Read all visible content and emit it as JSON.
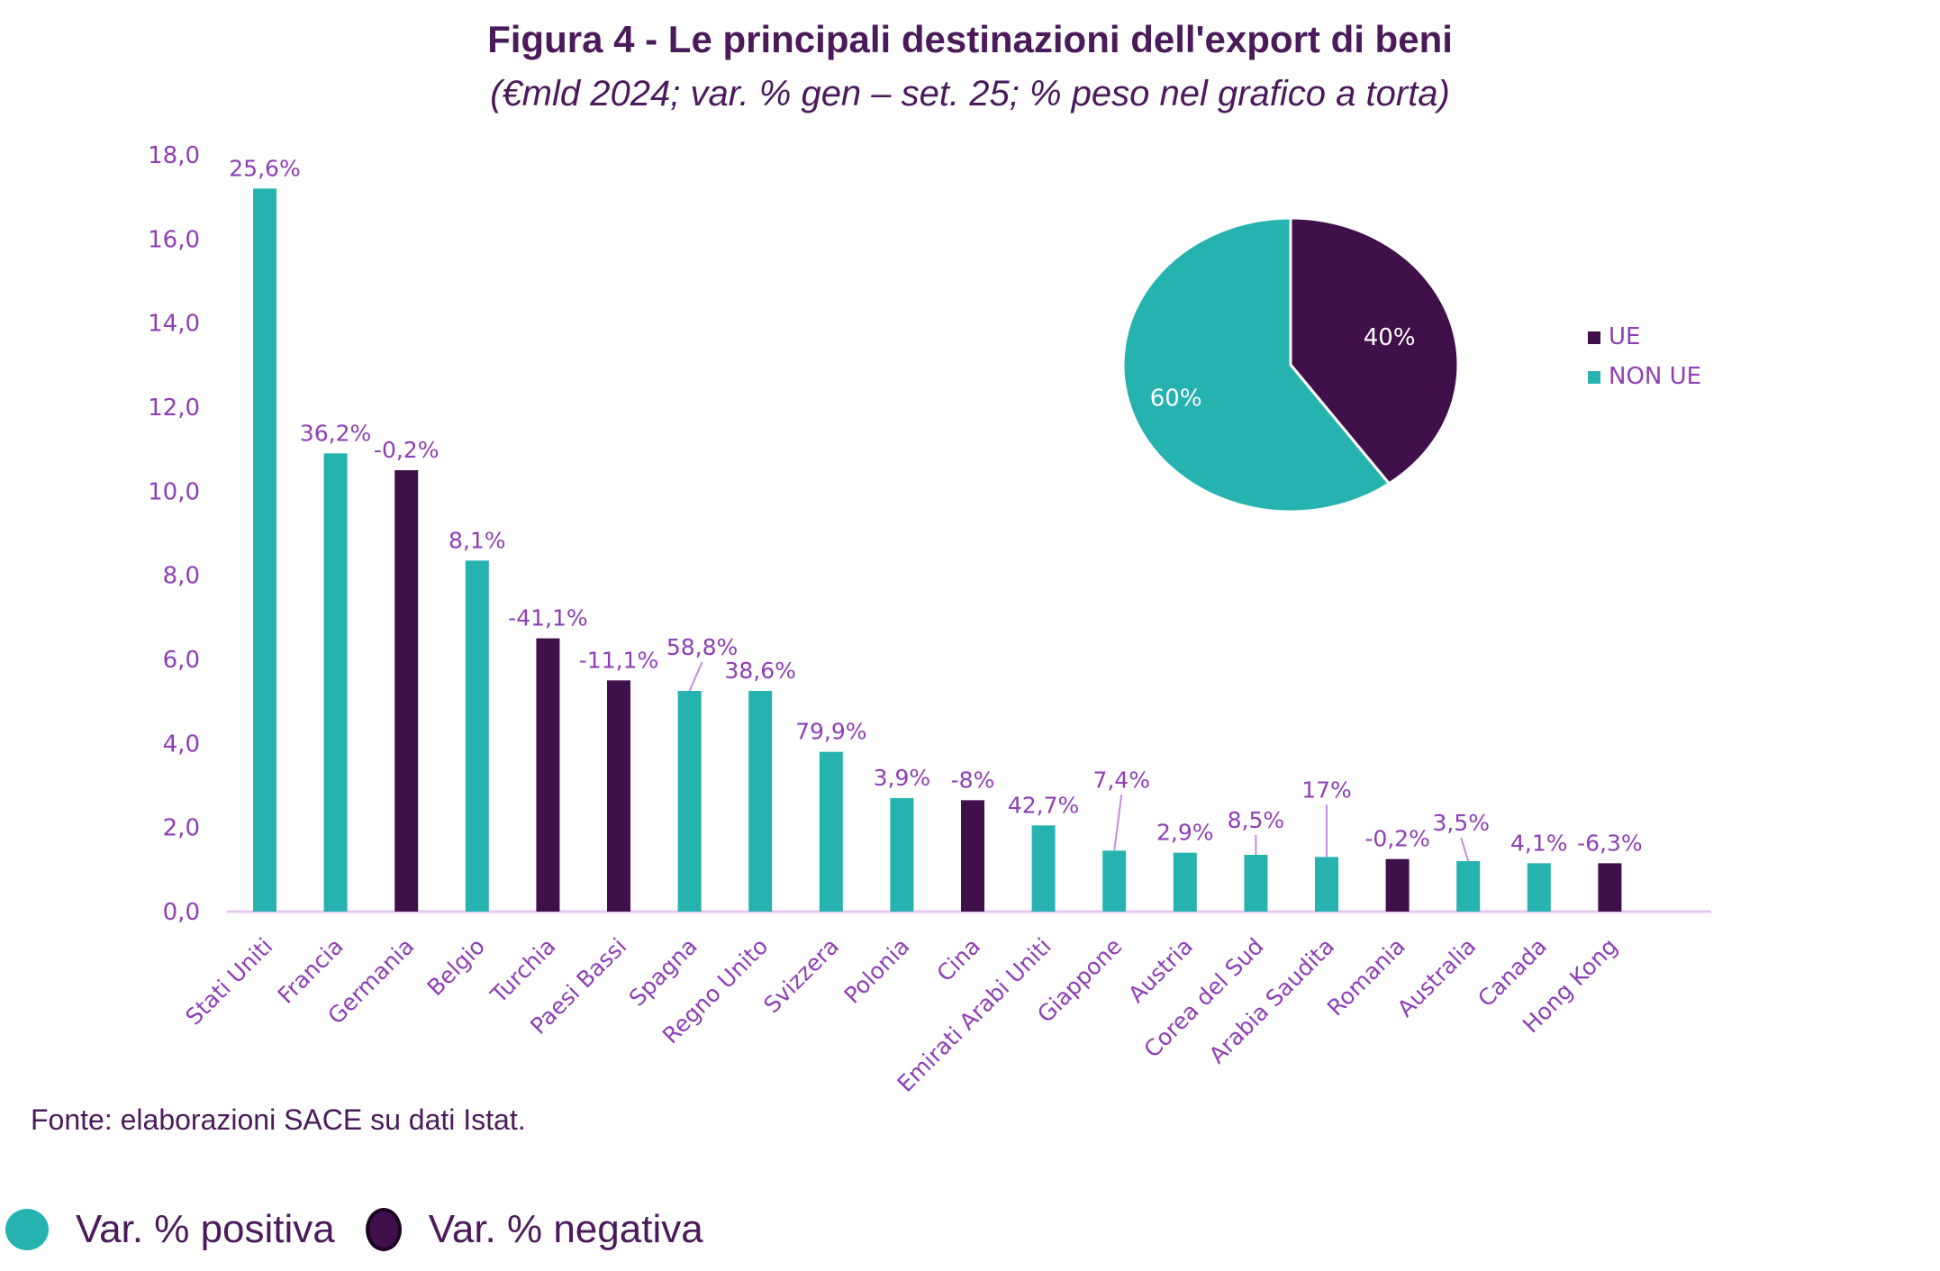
{
  "title": "Figura 4 - Le principali destinazioni dell'export di beni",
  "subtitle": "(€mld 2024; var. % gen – set. 25; % peso nel grafico a torta)",
  "source": "Fonte: elaborazioni SACE su dati Istat.",
  "legend_bottom": {
    "positive": "Var. % positiva",
    "negative": "Var. % negativa"
  },
  "colors": {
    "positive": "#26B3B0",
    "negative": "#3F1049",
    "label": "#8E3FB5",
    "axis": "#E5C8F0",
    "title": "#4A1A5A"
  },
  "chart_data": [
    {
      "type": "bar",
      "title": "Le principali destinazioni dell'export di beni",
      "xlabel": "",
      "ylabel": "€mld 2024",
      "ylim": [
        0,
        18
      ],
      "yticks": [
        "0,0",
        "2,0",
        "4,0",
        "6,0",
        "8,0",
        "10,0",
        "12,0",
        "14,0",
        "16,0",
        "18,0"
      ],
      "grid": false,
      "categories": [
        "Stati Uniti",
        "Francia",
        "Germania",
        "Belgio",
        "Turchia",
        "Paesi Bassi",
        "Spagna",
        "Regno Unito",
        "Svizzera",
        "Polonia",
        "Cina",
        "Emirati Arabi Uniti",
        "Giappone",
        "Austria",
        "Corea del Sud",
        "Arabia Saudita",
        "Romania",
        "Australia",
        "Canada",
        "Hong Kong"
      ],
      "values": [
        17.2,
        10.9,
        10.5,
        8.35,
        6.5,
        5.5,
        5.25,
        5.25,
        3.8,
        2.7,
        2.65,
        2.05,
        1.45,
        1.4,
        1.35,
        1.3,
        1.25,
        1.2,
        1.15,
        1.15
      ],
      "data_labels": [
        "25,6%",
        "36,2%",
        "-0,2%",
        "8,1%",
        "-41,1%",
        "-11,1%",
        "58,8%",
        "38,6%",
        "79,9%",
        "3,9%",
        "-8%",
        "42,7%",
        "7,4%",
        "2,9%",
        "8,5%",
        "17%",
        "-0,2%",
        "3,5%",
        "4,1%",
        "-6,3%"
      ],
      "variation_sign": [
        "positive",
        "positive",
        "negative",
        "positive",
        "negative",
        "negative",
        "positive",
        "positive",
        "positive",
        "positive",
        "negative",
        "positive",
        "positive",
        "positive",
        "positive",
        "positive",
        "negative",
        "positive",
        "positive",
        "negative"
      ]
    },
    {
      "type": "pie",
      "title": "% peso",
      "slices": [
        {
          "label": "UE",
          "value": 40,
          "text": "40%"
        },
        {
          "label": "NON UE",
          "value": 60,
          "text": "60%"
        }
      ],
      "legend": [
        "UE",
        "NON UE"
      ],
      "legend_position": "right"
    }
  ]
}
